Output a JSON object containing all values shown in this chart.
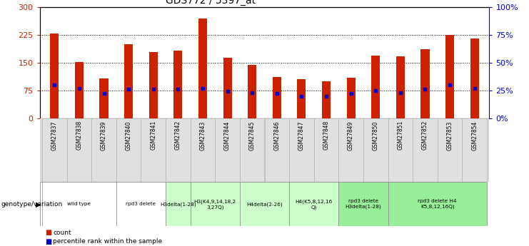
{
  "title": "GDS772 / 5397_at",
  "samples": [
    "GSM27837",
    "GSM27838",
    "GSM27839",
    "GSM27840",
    "GSM27841",
    "GSM27842",
    "GSM27843",
    "GSM27844",
    "GSM27845",
    "GSM27846",
    "GSM27847",
    "GSM27848",
    "GSM27849",
    "GSM27850",
    "GSM27851",
    "GSM27852",
    "GSM27853",
    "GSM27854"
  ],
  "counts": [
    230,
    152,
    107,
    200,
    178,
    182,
    270,
    163,
    145,
    112,
    105,
    100,
    110,
    170,
    167,
    187,
    225,
    215
  ],
  "percentiles": [
    30,
    27,
    22,
    26,
    26,
    26,
    27,
    24,
    23,
    22,
    20,
    20,
    22,
    25,
    23,
    26,
    30,
    27
  ],
  "genotype_groups": [
    {
      "label": "wild type",
      "start": 0,
      "end": 2,
      "color": "#ffffff"
    },
    {
      "label": "rpd3 delete",
      "start": 3,
      "end": 4,
      "color": "#ffffff"
    },
    {
      "label": "H3delta(1-28)",
      "start": 5,
      "end": 5,
      "color": "#ccffcc"
    },
    {
      "label": "H3(K4,9,14,18,2\n3,27Q)",
      "start": 6,
      "end": 7,
      "color": "#ccffcc"
    },
    {
      "label": "H4delta(2-26)",
      "start": 8,
      "end": 9,
      "color": "#ccffcc"
    },
    {
      "label": "H4(K5,8,12,16\nQ)",
      "start": 10,
      "end": 11,
      "color": "#ccffcc"
    },
    {
      "label": "rpd3 delete\nH3delta(1-28)",
      "start": 12,
      "end": 13,
      "color": "#99ee99"
    },
    {
      "label": "rpd3 delete H4\nK5,8,12,16Q)",
      "start": 14,
      "end": 17,
      "color": "#99ee99"
    }
  ],
  "ylim_left": [
    0,
    300
  ],
  "ylim_right": [
    0,
    100
  ],
  "yticks_left": [
    0,
    75,
    150,
    225,
    300
  ],
  "yticks_right": [
    0,
    25,
    50,
    75,
    100
  ],
  "bar_color": "#cc2200",
  "marker_color": "#0000cc",
  "left_axis_color": "#cc2200",
  "right_axis_color": "#0000cc",
  "bar_width": 0.35
}
